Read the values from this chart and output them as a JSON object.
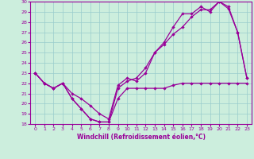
{
  "xlabel": "Windchill (Refroidissement éolien,°C)",
  "xlim": [
    -0.5,
    23.5
  ],
  "ylim": [
    18,
    30
  ],
  "xticks": [
    0,
    1,
    2,
    3,
    4,
    5,
    6,
    7,
    8,
    9,
    10,
    11,
    12,
    13,
    14,
    15,
    16,
    17,
    18,
    19,
    20,
    21,
    22,
    23
  ],
  "yticks": [
    18,
    19,
    20,
    21,
    22,
    23,
    24,
    25,
    26,
    27,
    28,
    29,
    30
  ],
  "bg_color": "#cceedd",
  "line_color": "#990099",
  "grid_color": "#99cccc",
  "series": {
    "line1": [
      23.0,
      22.0,
      21.5,
      22.0,
      20.5,
      19.5,
      18.5,
      18.2,
      18.2,
      20.5,
      21.5,
      21.5,
      21.5,
      21.5,
      21.5,
      21.8,
      22.0,
      22.0,
      22.0,
      22.0,
      22.0,
      22.0,
      22.0,
      22.0
    ],
    "line2": [
      23.0,
      22.0,
      21.5,
      22.0,
      20.5,
      19.5,
      18.5,
      18.2,
      18.2,
      21.5,
      22.2,
      22.5,
      23.5,
      25.0,
      25.8,
      26.8,
      27.5,
      28.5,
      29.2,
      29.2,
      30.0,
      29.5,
      27.0,
      22.5
    ],
    "line3": [
      23.0,
      22.0,
      21.5,
      22.0,
      21.0,
      20.5,
      19.8,
      19.0,
      18.5,
      21.8,
      22.5,
      22.2,
      23.0,
      25.0,
      26.0,
      27.5,
      28.8,
      28.8,
      29.5,
      29.0,
      30.0,
      29.3,
      27.0,
      22.5
    ]
  }
}
